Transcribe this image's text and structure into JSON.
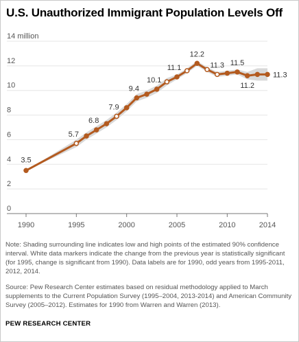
{
  "title": "U.S. Unauthorized Immigrant Population Levels Off",
  "note": "Note: Shading surrounding line indicates low and high points of the estimated 90% confidence interval. White data markers indicate the change from the previous year is statistically significant (for 1995, change is significant from 1990). Data labels are for 1990, odd years from 1995-2011, 2012, 2014.",
  "source": "Source: Pew Research Center estimates based on residual methodology applied to March supplements to the Current Population Survey (1995–2004, 2013-2014) and American Community Survey (2005–2012). Estimates for 1990 from Warren and Warren (2013).",
  "brand": "PEW RESEARCH CENTER",
  "colors": {
    "line": "#b35a1f",
    "band": "#d9d9d9",
    "grid": "#e5e5e5",
    "axis": "#777777"
  },
  "chart_data": {
    "type": "line",
    "title": "U.S. Unauthorized Immigrant Population Levels Off",
    "xlim": [
      1990,
      2014
    ],
    "ylim": [
      0,
      14
    ],
    "x_ticks": [
      "1990",
      "1995",
      "2000",
      "2005",
      "2010",
      "2014"
    ],
    "y_ticks": [
      "0",
      "2",
      "4",
      "6",
      "8",
      "10",
      "12",
      "14 million"
    ],
    "grid": true,
    "series": [
      {
        "x": [
          1990,
          1995,
          1996,
          1997,
          1998,
          1999,
          2000,
          2001,
          2002,
          2003,
          2004,
          2005,
          2006,
          2007,
          2008,
          2009,
          2010,
          2011,
          2012,
          2013,
          2014
        ],
        "values": [
          3.5,
          5.7,
          6.3,
          6.8,
          7.3,
          7.9,
          8.6,
          9.4,
          9.7,
          10.1,
          10.7,
          11.1,
          11.6,
          12.2,
          11.7,
          11.3,
          11.4,
          11.5,
          11.2,
          11.3,
          11.3
        ],
        "band_low": [
          3.5,
          5.4,
          6.0,
          6.5,
          7.0,
          7.6,
          8.3,
          9.1,
          9.4,
          9.8,
          10.4,
          10.9,
          11.4,
          12.0,
          11.5,
          11.1,
          11.2,
          11.3,
          10.9,
          10.8,
          10.8
        ],
        "band_high": [
          3.5,
          6.0,
          6.6,
          7.1,
          7.6,
          8.2,
          8.9,
          9.7,
          10.0,
          10.4,
          11.0,
          11.3,
          11.8,
          12.4,
          11.9,
          11.5,
          11.6,
          11.7,
          11.5,
          11.8,
          11.8
        ],
        "significant": [
          false,
          true,
          false,
          false,
          false,
          true,
          false,
          false,
          false,
          false,
          true,
          false,
          true,
          false,
          true,
          true,
          false,
          false,
          false,
          false,
          false
        ]
      }
    ],
    "data_labels": [
      {
        "x": 1990,
        "text": "3.5"
      },
      {
        "x": 1995,
        "text": "5.7"
      },
      {
        "x": 1997,
        "text": "6.8"
      },
      {
        "x": 1999,
        "text": "7.9"
      },
      {
        "x": 2001,
        "text": "9.4"
      },
      {
        "x": 2003,
        "text": "10.1"
      },
      {
        "x": 2005,
        "text": "11.1"
      },
      {
        "x": 2007,
        "text": "12.2"
      },
      {
        "x": 2009,
        "text": "11.3"
      },
      {
        "x": 2011,
        "text": "11.5"
      },
      {
        "x": 2012,
        "text": "11.2"
      },
      {
        "x": 2014,
        "text": "11.3"
      }
    ]
  }
}
